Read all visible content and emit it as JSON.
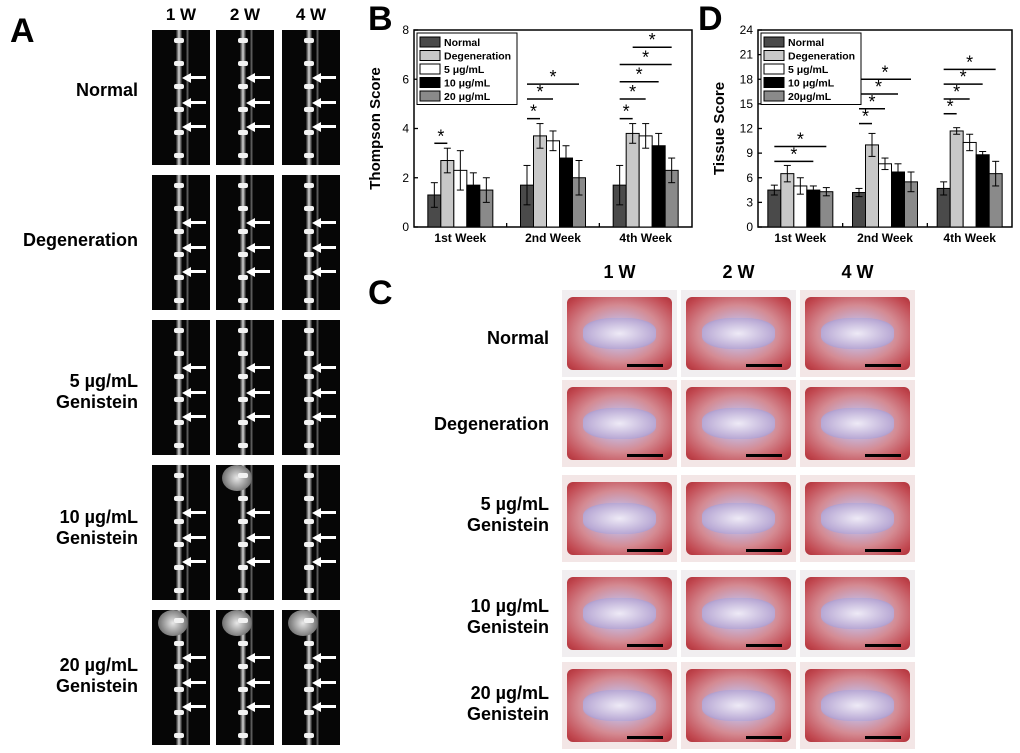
{
  "panels": {
    "A": "A",
    "B": "B",
    "C": "C",
    "D": "D"
  },
  "panel_a": {
    "column_titles": [
      "1 W",
      "2 W",
      "4 W"
    ],
    "rows": [
      {
        "label": [
          "Normal"
        ]
      },
      {
        "label": [
          "Degeneration"
        ]
      },
      {
        "label": [
          "5 µg/mL",
          "Genistein"
        ]
      },
      {
        "label": [
          "10 µg/mL",
          "Genistein"
        ]
      },
      {
        "label": [
          "20 µg/mL",
          "Genistein"
        ]
      }
    ]
  },
  "panel_c": {
    "column_titles": [
      "1 W",
      "2 W",
      "4 W"
    ],
    "rows": [
      {
        "label": [
          "Normal"
        ]
      },
      {
        "label": [
          "Degeneration"
        ]
      },
      {
        "label": [
          "5 µg/mL",
          "Genistein"
        ]
      },
      {
        "label": [
          "10 µg/mL",
          "Genistein"
        ]
      },
      {
        "label": [
          "20 µg/mL",
          "Genistein"
        ]
      }
    ]
  },
  "chart_data": [
    {
      "type": "bar",
      "panel": "B",
      "ylabel": "Thompson Score",
      "xlabel": "",
      "ylim": [
        0,
        8
      ],
      "yticks": [
        "0",
        "2",
        "4",
        "6",
        "8"
      ],
      "categories": [
        "1st Week",
        "2nd Week",
        "4th Week"
      ],
      "legend_placement": "top-left",
      "series": [
        {
          "name": "Normal",
          "color": "#4a4a4a",
          "values": [
            1.3,
            1.7,
            1.7
          ],
          "errors": [
            0.5,
            0.8,
            0.8
          ]
        },
        {
          "name": "Degeneration",
          "color": "#c8c8c8",
          "values": [
            2.7,
            3.7,
            3.8
          ],
          "errors": [
            0.5,
            0.5,
            0.4
          ]
        },
        {
          "name": "5 μg/mL",
          "color": "#ffffff",
          "values": [
            2.3,
            3.5,
            3.7
          ],
          "errors": [
            0.8,
            0.4,
            0.5
          ]
        },
        {
          "name": "10 μg/mL",
          "color": "#000000",
          "values": [
            1.7,
            2.8,
            3.3
          ],
          "errors": [
            0.5,
            0.5,
            0.5
          ]
        },
        {
          "name": "20 μg/mL",
          "color": "#8a8a8a",
          "values": [
            1.5,
            2.0,
            2.3
          ],
          "errors": [
            0.5,
            0.7,
            0.5
          ]
        }
      ],
      "significance": [
        {
          "group": 0,
          "from": 0,
          "to": 1,
          "y": 3.4,
          "label": "*"
        },
        {
          "group": 1,
          "from": 0,
          "to": 1,
          "y": 4.4,
          "label": "*"
        },
        {
          "group": 1,
          "from": 0,
          "to": 2,
          "y": 5.2,
          "label": "*"
        },
        {
          "group": 1,
          "from": 0,
          "to": 4,
          "y": 5.8,
          "label": "*"
        },
        {
          "group": 2,
          "from": 0,
          "to": 1,
          "y": 4.4,
          "label": "*"
        },
        {
          "group": 2,
          "from": 0,
          "to": 2,
          "y": 5.2,
          "label": "*"
        },
        {
          "group": 2,
          "from": 0,
          "to": 3,
          "y": 5.9,
          "label": "*"
        },
        {
          "group": 2,
          "from": 0,
          "to": 4,
          "y": 6.6,
          "label": "*"
        },
        {
          "group": 2,
          "from": 1,
          "to": 4,
          "y": 7.3,
          "label": "*"
        }
      ]
    },
    {
      "type": "bar",
      "panel": "D",
      "ylabel": "Tissue Score",
      "xlabel": "",
      "ylim": [
        0,
        24
      ],
      "yticks": [
        "0",
        "3",
        "6",
        "9",
        "12",
        "15",
        "18",
        "21",
        "24"
      ],
      "categories": [
        "1st Week",
        "2nd Week",
        "4th Week"
      ],
      "legend_placement": "top-left",
      "series": [
        {
          "name": "Normal",
          "color": "#4a4a4a",
          "values": [
            4.5,
            4.2,
            4.7
          ],
          "errors": [
            0.6,
            0.5,
            0.8
          ]
        },
        {
          "name": "Degeneration",
          "color": "#c8c8c8",
          "values": [
            6.5,
            10.0,
            11.7
          ],
          "errors": [
            1.0,
            1.4,
            0.4
          ]
        },
        {
          "name": "5 μg/mL",
          "color": "#ffffff",
          "values": [
            5.0,
            7.7,
            10.3
          ],
          "errors": [
            1.0,
            0.7,
            1.0
          ]
        },
        {
          "name": "10 μg/mL",
          "color": "#000000",
          "values": [
            4.5,
            6.7,
            8.8
          ],
          "errors": [
            0.5,
            1.0,
            0.4
          ]
        },
        {
          "name": "20μg/mL",
          "color": "#8a8a8a",
          "values": [
            4.3,
            5.5,
            6.5
          ],
          "errors": [
            0.5,
            1.2,
            1.5
          ]
        }
      ],
      "significance": [
        {
          "group": 0,
          "from": 0,
          "to": 3,
          "y": 8.0,
          "label": "*"
        },
        {
          "group": 0,
          "from": 0,
          "to": 4,
          "y": 9.8,
          "label": "*"
        },
        {
          "group": 1,
          "from": 0,
          "to": 1,
          "y": 12.6,
          "label": "*"
        },
        {
          "group": 1,
          "from": 0,
          "to": 2,
          "y": 14.4,
          "label": "*"
        },
        {
          "group": 1,
          "from": 0,
          "to": 3,
          "y": 16.2,
          "label": "*"
        },
        {
          "group": 1,
          "from": 0,
          "to": 4,
          "y": 18.0,
          "label": "*"
        },
        {
          "group": 2,
          "from": 0,
          "to": 1,
          "y": 13.8,
          "label": "*"
        },
        {
          "group": 2,
          "from": 0,
          "to": 2,
          "y": 15.6,
          "label": "*"
        },
        {
          "group": 2,
          "from": 0,
          "to": 3,
          "y": 17.4,
          "label": "*"
        },
        {
          "group": 2,
          "from": 0,
          "to": 4,
          "y": 19.2,
          "label": "*"
        }
      ]
    }
  ]
}
